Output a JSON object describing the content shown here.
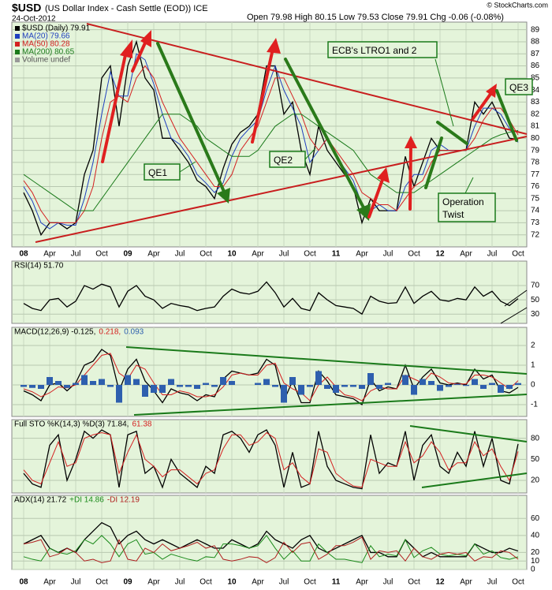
{
  "header": {
    "symbol": "$USD",
    "description": "(US Dollar Index - Cash Settle (EOD)) ICE",
    "date": "24-Oct-2012",
    "quote": "Open 79.98 High 80.15 Low 79.53 Close 79.91 Chg -0.06 (-0.08%)",
    "credit": "© StockCharts.com"
  },
  "chart_data": [
    {
      "type": "line",
      "legend": "list",
      "grid": true,
      "volume_label": "Volume undef",
      "categories": [
        "08",
        null,
        null,
        "Apr",
        null,
        null,
        "Jul",
        null,
        null,
        "Oct",
        null,
        null,
        "09",
        null,
        null,
        "Apr",
        null,
        null,
        "Jul",
        null,
        null,
        "Oct",
        null,
        null,
        "10",
        null,
        null,
        "Apr",
        null,
        null,
        "Jul",
        null,
        null,
        "Oct",
        null,
        null,
        "11",
        null,
        null,
        "Apr",
        null,
        null,
        "Jul",
        null,
        null,
        "Oct",
        null,
        null,
        "12",
        null,
        null,
        "Apr",
        null,
        null,
        "Jul",
        null,
        null,
        "Oct"
      ],
      "ylim": [
        71,
        89.5
      ],
      "yticks": [
        72,
        73,
        74,
        75,
        76,
        77,
        78,
        79,
        80,
        81,
        82,
        83,
        84,
        85,
        86,
        87,
        88,
        89
      ],
      "annotations": [
        {
          "lines": [
            "QE1"
          ]
        },
        {
          "lines": [
            "QE2"
          ]
        },
        {
          "lines": [
            "QE3"
          ]
        },
        {
          "lines": [
            "ECB's LTRO1 and 2"
          ]
        },
        {
          "lines": [
            "Operation",
            "Twist"
          ]
        }
      ],
      "series": [
        {
          "name": "$USD (Daily) 79.91",
          "color": "#000000",
          "values": [
            75.5,
            74,
            72,
            73,
            73,
            72.5,
            73,
            77,
            79,
            85,
            86,
            81,
            86,
            88,
            85,
            84,
            80,
            80,
            79,
            78,
            76.5,
            76,
            75,
            77.5,
            79.5,
            80.5,
            81,
            82,
            86,
            86,
            82,
            83,
            79,
            77,
            81,
            79,
            78,
            77,
            76,
            73,
            75,
            74,
            74,
            74,
            78.5,
            76,
            78,
            80,
            79,
            79,
            79,
            79,
            83,
            82,
            83,
            81.5,
            80,
            79.91
          ]
        },
        {
          "name": "MA(20) 79.66",
          "color": "#1f3fbf",
          "values": [
            76,
            74.8,
            73,
            72.5,
            73,
            72.8,
            72.8,
            75,
            78,
            82,
            85.5,
            83.5,
            83.5,
            87,
            86.5,
            84.5,
            82,
            80,
            79.5,
            78.5,
            77,
            76.3,
            75.5,
            76.3,
            78.5,
            80,
            80.8,
            81.5,
            84,
            86,
            84,
            82.5,
            81,
            78,
            79,
            80,
            78.5,
            77.5,
            76.5,
            74.5,
            74,
            74.5,
            74,
            74,
            76,
            77,
            77,
            79,
            79.5,
            79,
            79,
            79,
            81,
            82.5,
            82.5,
            82,
            80.8,
            79.66
          ]
        },
        {
          "name": "MA(50) 80.28",
          "color": "#d42020",
          "values": [
            76.5,
            75.5,
            74,
            73,
            73,
            73,
            73,
            74,
            76,
            80,
            83,
            83.5,
            83,
            85,
            86,
            85,
            83,
            81.5,
            80,
            79,
            78,
            77,
            76,
            76,
            77,
            79,
            80,
            81,
            83,
            85,
            85,
            83.5,
            82,
            80,
            79,
            80,
            79,
            78,
            77,
            75.5,
            75,
            74.5,
            74.5,
            74,
            75,
            76,
            76.5,
            78,
            79,
            79,
            79,
            79,
            80,
            81.5,
            82.5,
            82.5,
            81.5,
            80.28
          ]
        },
        {
          "name": "MA(200) 80.65",
          "color": "#1a7a1a",
          "values": [
            77,
            76.5,
            76,
            75.5,
            75,
            74.5,
            74,
            74,
            74,
            75,
            76,
            77,
            78,
            79,
            80,
            81,
            82,
            82,
            82,
            81.5,
            81,
            80,
            79.5,
            79,
            78.5,
            78.5,
            78.5,
            79,
            80,
            81,
            81.5,
            82,
            82,
            81.5,
            81,
            80.5,
            80,
            79.5,
            79,
            78,
            77,
            76.5,
            76,
            75.5,
            75.5,
            75.5,
            76,
            76.5,
            77,
            77.5,
            78,
            78.5,
            79,
            79.5,
            80,
            80.3,
            80.5,
            80.65
          ]
        }
      ]
    },
    {
      "type": "line",
      "legend": "inline",
      "grid": true,
      "ylim": [
        17,
        91
      ],
      "yticks": [
        30,
        50,
        70
      ],
      "series": [
        {
          "name": "RSI(14) 51.70",
          "color": "#000000",
          "values": [
            45,
            38,
            35,
            50,
            52,
            40,
            48,
            70,
            65,
            72,
            68,
            40,
            62,
            70,
            55,
            50,
            38,
            45,
            42,
            40,
            35,
            38,
            40,
            55,
            65,
            60,
            58,
            62,
            75,
            60,
            40,
            52,
            38,
            35,
            60,
            50,
            42,
            40,
            38,
            30,
            55,
            48,
            45,
            46,
            68,
            45,
            55,
            62,
            50,
            48,
            52,
            50,
            68,
            55,
            62,
            48,
            42,
            51.7
          ]
        }
      ]
    },
    {
      "type": "line",
      "legend": "inline",
      "grid": true,
      "ylim": [
        -1.6,
        2.4
      ],
      "yticks": [
        -1,
        0,
        1,
        2
      ],
      "series": [
        {
          "name": "MACD(12,26,9) -0.125,",
          "color": "#000000",
          "values": [
            -0.3,
            -0.5,
            -0.8,
            0,
            0.1,
            -0.3,
            0.1,
            1.0,
            1.2,
            1.8,
            1.5,
            -0.3,
            0.8,
            1.3,
            0.2,
            -0.3,
            -0.9,
            -0.2,
            -0.4,
            -0.5,
            -0.8,
            -0.5,
            -0.6,
            0.3,
            0.7,
            0.6,
            0.5,
            0.6,
            1.3,
            1.0,
            -0.8,
            0.2,
            -0.9,
            -0.9,
            0.7,
            0.2,
            -0.5,
            -0.6,
            -0.7,
            -1.0,
            0.3,
            -0.3,
            -0.1,
            -0.2,
            1.0,
            -0.2,
            0.4,
            0.8,
            0.1,
            0,
            0.1,
            0,
            0.8,
            0.3,
            0.5,
            -0.3,
            -0.4,
            -0.125
          ]
        },
        {
          "name": "0.218,",
          "color": "#d42020",
          "values": [
            -0.2,
            -0.35,
            -0.6,
            -0.4,
            -0.1,
            -0.15,
            0,
            0.5,
            1.0,
            1.5,
            1.6,
            0.6,
            0.3,
            1.0,
            0.8,
            0.1,
            -0.5,
            -0.5,
            -0.3,
            -0.4,
            -0.6,
            -0.6,
            -0.5,
            -0.1,
            0.5,
            0.6,
            0.5,
            0.5,
            1.0,
            1.1,
            0.1,
            -0.2,
            -0.4,
            -0.8,
            0,
            0.4,
            -0.1,
            -0.5,
            -0.6,
            -0.8,
            -0.3,
            -0.1,
            -0.2,
            -0.2,
            0.5,
            0.3,
            0.1,
            0.6,
            0.4,
            0.1,
            0.05,
            0.05,
            0.5,
            0.5,
            0.4,
            0.1,
            -0.2,
            0.218
          ]
        },
        {
          "name": "0.093",
          "color": "#2e5fae",
          "style": "bars",
          "values": [
            -0.1,
            -0.15,
            -0.2,
            0.4,
            0.2,
            -0.15,
            0.1,
            0.5,
            0.2,
            0.3,
            -0.1,
            -0.9,
            0.5,
            0.3,
            -0.6,
            -0.4,
            -0.4,
            0.3,
            -0.1,
            -0.1,
            -0.2,
            0.1,
            -0.1,
            0.4,
            0.2,
            0,
            0,
            0.1,
            0.3,
            -0.1,
            -0.9,
            0.4,
            -0.5,
            -0.1,
            0.7,
            -0.2,
            -0.4,
            -0.1,
            -0.1,
            -0.2,
            0.6,
            -0.2,
            0.1,
            0,
            0.5,
            -0.5,
            0.3,
            0.2,
            -0.3,
            -0.1,
            0.05,
            -0.05,
            0.3,
            -0.2,
            0.1,
            -0.4,
            -0.2,
            0.093
          ]
        }
      ]
    },
    {
      "type": "line",
      "legend": "inline",
      "grid": true,
      "ylim": [
        2,
        92
      ],
      "yticks": [
        20,
        50,
        80
      ],
      "series": [
        {
          "name": "Full STO %K(14,3) %D(3) 71.84,",
          "color": "#000000",
          "values": [
            30,
            15,
            10,
            70,
            85,
            20,
            50,
            90,
            80,
            92,
            85,
            10,
            85,
            90,
            30,
            40,
            10,
            50,
            30,
            20,
            10,
            40,
            30,
            85,
            90,
            80,
            60,
            85,
            92,
            70,
            10,
            60,
            10,
            15,
            90,
            40,
            20,
            15,
            10,
            8,
            85,
            30,
            45,
            40,
            90,
            20,
            70,
            85,
            40,
            30,
            60,
            40,
            90,
            40,
            80,
            20,
            15,
            71.84
          ]
        },
        {
          "name": "61.38",
          "color": "#d42020",
          "values": [
            35,
            20,
            15,
            45,
            75,
            40,
            45,
            80,
            85,
            88,
            85,
            30,
            60,
            85,
            50,
            40,
            25,
            35,
            35,
            25,
            15,
            30,
            35,
            65,
            85,
            85,
            70,
            75,
            88,
            80,
            35,
            45,
            25,
            15,
            65,
            60,
            30,
            20,
            12,
            10,
            50,
            45,
            40,
            40,
            75,
            45,
            55,
            75,
            60,
            35,
            45,
            45,
            75,
            55,
            65,
            40,
            20,
            61.38
          ]
        }
      ]
    },
    {
      "type": "line",
      "legend": "inline",
      "grid": true,
      "ylim": [
        0,
        76
      ],
      "yticks": [
        0,
        10,
        20,
        40,
        60
      ],
      "series": [
        {
          "name": "ADX(14) 21.72",
          "color": "#000000",
          "values": [
            30,
            35,
            40,
            25,
            20,
            25,
            20,
            35,
            45,
            55,
            50,
            30,
            40,
            45,
            35,
            30,
            35,
            30,
            25,
            30,
            35,
            30,
            25,
            25,
            35,
            30,
            25,
            30,
            45,
            35,
            30,
            25,
            35,
            40,
            25,
            20,
            25,
            30,
            35,
            40,
            20,
            20,
            15,
            15,
            35,
            25,
            15,
            20,
            15,
            15,
            15,
            15,
            30,
            25,
            20,
            20,
            25,
            21.72
          ]
        },
        {
          "name": "+DI 14.86",
          "color": "#1a8a1a",
          "values": [
            15,
            12,
            10,
            25,
            20,
            18,
            22,
            35,
            30,
            40,
            30,
            15,
            30,
            35,
            18,
            20,
            12,
            18,
            15,
            12,
            10,
            15,
            14,
            30,
            30,
            28,
            25,
            28,
            40,
            25,
            12,
            22,
            10,
            10,
            30,
            20,
            12,
            12,
            10,
            8,
            28,
            15,
            18,
            16,
            35,
            14,
            22,
            26,
            18,
            16,
            18,
            16,
            30,
            18,
            22,
            14,
            12,
            14.86
          ]
        },
        {
          "name": "-DI 12.19",
          "color": "#b02020",
          "values": [
            30,
            32,
            35,
            15,
            18,
            25,
            20,
            10,
            12,
            8,
            10,
            35,
            12,
            10,
            25,
            20,
            30,
            22,
            25,
            28,
            32,
            25,
            28,
            12,
            10,
            12,
            15,
            14,
            8,
            14,
            32,
            20,
            30,
            32,
            12,
            18,
            28,
            28,
            32,
            38,
            12,
            22,
            20,
            22,
            10,
            25,
            15,
            12,
            18,
            20,
            18,
            20,
            10,
            15,
            14,
            22,
            20,
            12.19
          ]
        }
      ]
    }
  ]
}
